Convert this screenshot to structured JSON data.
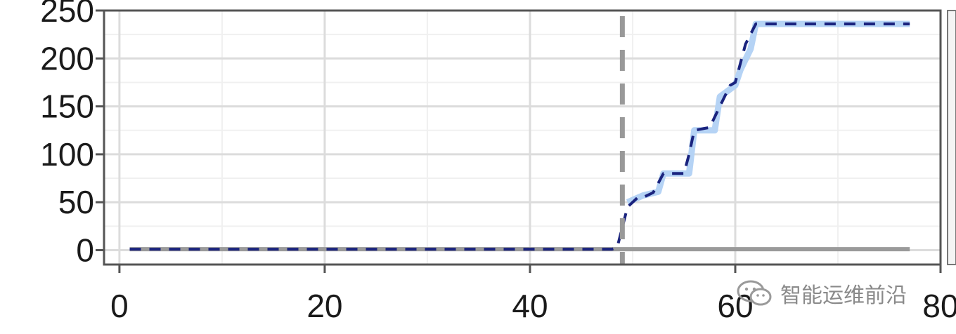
{
  "chart_data": {
    "type": "line",
    "xlim": [
      -1.5,
      80
    ],
    "ylim": [
      -15,
      250
    ],
    "x_ticks": [
      0,
      20,
      40,
      60,
      80
    ],
    "y_ticks": [
      0,
      50,
      100,
      150,
      200,
      250
    ],
    "x_tick_labels": [
      "0",
      "20",
      "40",
      "60",
      "80"
    ],
    "y_tick_labels": [
      "0",
      "50",
      "100",
      "150",
      "200",
      "250"
    ],
    "grid": true,
    "vertical_marker": {
      "x": 49,
      "style": "dashed",
      "color": "#999999"
    },
    "series": [
      {
        "style": "solid",
        "color": "#9a9a9a",
        "x": [
          1,
          48.5,
          49,
          77
        ],
        "y": [
          1,
          1,
          1,
          1
        ]
      },
      {
        "style": "solid-band",
        "color": "#b5d3f5",
        "x": [
          49.5,
          51,
          52.5,
          53,
          55.5,
          56,
          58,
          58.5,
          60,
          60.5,
          61.5,
          62,
          77
        ],
        "y": [
          50,
          57,
          61,
          80,
          80,
          125,
          125,
          160,
          172,
          188,
          210,
          236,
          236
        ]
      },
      {
        "style": "dashed",
        "color": "#1a237e",
        "x": [
          1,
          48,
          48.5,
          49.5,
          50.5,
          51,
          52,
          53,
          54.5,
          55,
          55.5,
          56,
          57,
          57.5,
          58.5,
          59.5,
          60,
          61,
          62,
          63,
          77
        ],
        "y": [
          1,
          1,
          3,
          45,
          55,
          55,
          60,
          80,
          80,
          80,
          100,
          125,
          127,
          128,
          150,
          172,
          175,
          215,
          236,
          236,
          236
        ]
      }
    ]
  },
  "watermark": {
    "text": "智能运维前沿",
    "icon": "wechat-icon"
  }
}
